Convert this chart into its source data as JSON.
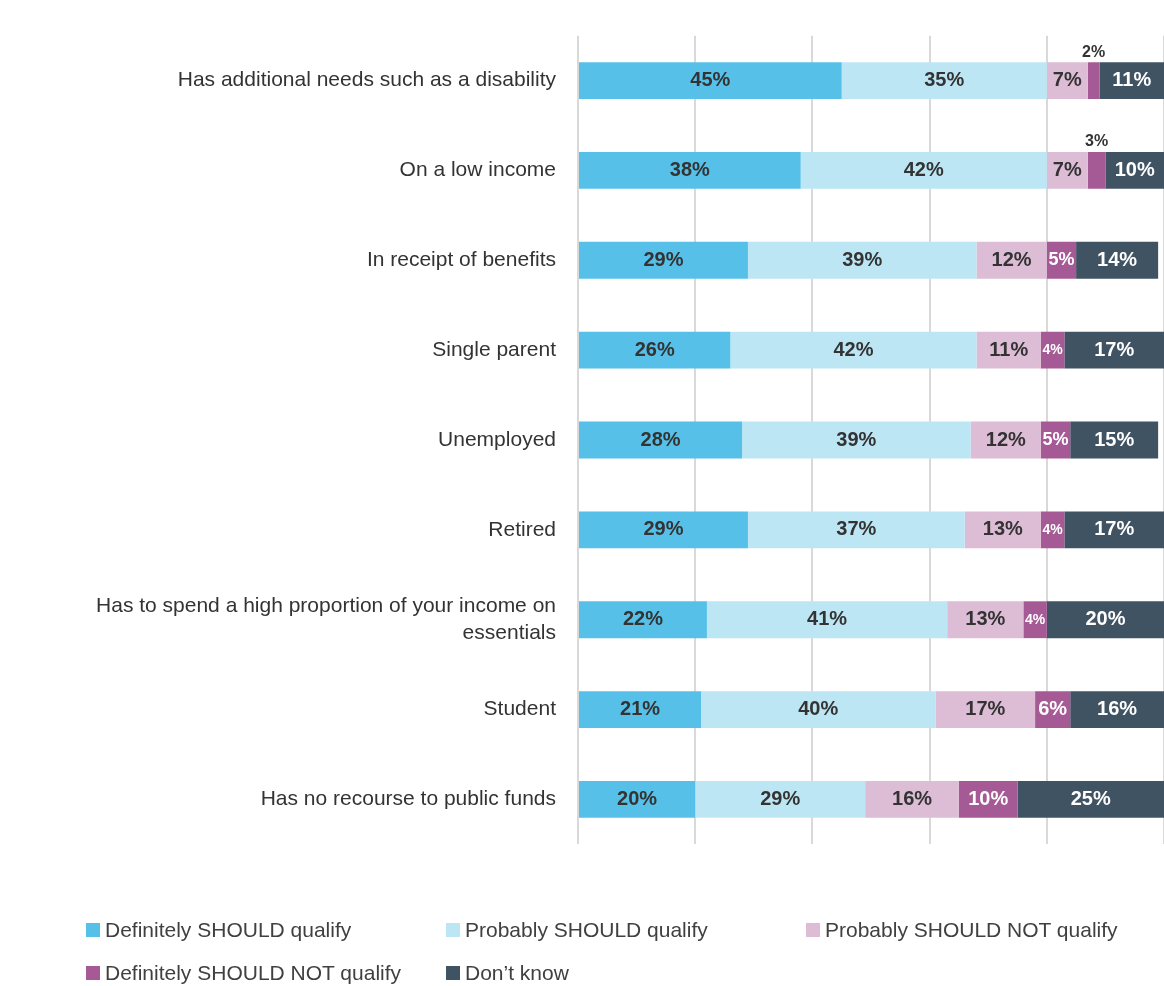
{
  "chart_data": {
    "type": "bar",
    "orientation": "horizontal",
    "stacked": true,
    "categories": [
      "Has additional needs such as a disability",
      "On a low income",
      "In receipt of benefits",
      "Single parent",
      "Unemployed",
      "Retired",
      "Has to spend a high proportion of your income on essentials",
      "Student",
      "Has no recourse to public funds"
    ],
    "series": [
      {
        "name": "Definitely SHOULD qualify",
        "color": "#56c0e8",
        "values": [
          45,
          38,
          29,
          26,
          28,
          29,
          22,
          21,
          20
        ],
        "value_labels": [
          "45%",
          "38%",
          "29%",
          "26%",
          "28%",
          "29%",
          "22%",
          "21%",
          "20%"
        ]
      },
      {
        "name": "Probably SHOULD qualify",
        "color": "#bde6f4",
        "values": [
          35,
          42,
          39,
          42,
          39,
          37,
          41,
          40,
          29
        ],
        "value_labels": [
          "35%",
          "42%",
          "39%",
          "42%",
          "39%",
          "37%",
          "41%",
          "40%",
          "29%"
        ]
      },
      {
        "name": "Probably SHOULD NOT qualify",
        "color": "#ddbdd6",
        "values": [
          7,
          7,
          12,
          11,
          12,
          13,
          13,
          17,
          16
        ],
        "value_labels": [
          "7%",
          "7%",
          "12%",
          "11%",
          "12%",
          "13%",
          "13%",
          "17%",
          "16%"
        ]
      },
      {
        "name": "Definitely SHOULD NOT qualify",
        "color": "#a55a96",
        "values": [
          2,
          3,
          5,
          4,
          5,
          4,
          4,
          6,
          10
        ],
        "value_labels": [
          "2%",
          "3%",
          "5%",
          "4%",
          "5%",
          "4%",
          "4%",
          "6%",
          "10%"
        ]
      },
      {
        "name": "Don’t know",
        "color": "#405363",
        "values": [
          11,
          10,
          14,
          17,
          15,
          17,
          20,
          16,
          25
        ],
        "value_labels": [
          "11%",
          "10%",
          "14%",
          "17%",
          "15%",
          "17%",
          "20%",
          "16%",
          "25%"
        ]
      }
    ],
    "xlim": [
      0,
      100
    ],
    "xticks": [
      {
        "value": 0,
        "label": null
      },
      {
        "value": 20,
        "label": null
      },
      {
        "value": 40,
        "label": null
      },
      {
        "value": 60,
        "label": null
      },
      {
        "value": 80,
        "label": null
      },
      {
        "value": 100,
        "label": null
      }
    ],
    "grid": "x",
    "legend": "bottom",
    "tick_labels": "y"
  }
}
